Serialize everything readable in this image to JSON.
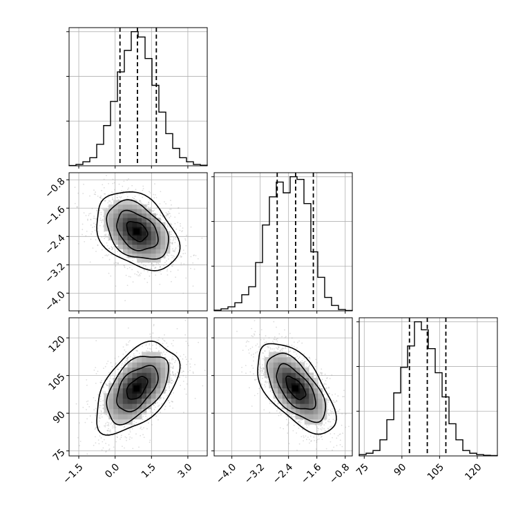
{
  "chart_data": {
    "type": "corner",
    "grid": true,
    "parameters": [
      {
        "ticks": [
          -1.5,
          0.0,
          1.5,
          3.0
        ],
        "tick_labels": [
          "−1.5",
          "0.0",
          "1.5",
          "3.0"
        ],
        "range": [
          -1.9,
          3.8
        ],
        "quantiles": [
          0.2,
          0.92,
          1.7
        ]
      },
      {
        "ticks": [
          -4.0,
          -3.2,
          -2.4,
          -1.6,
          -0.8
        ],
        "tick_labels": [
          "−4.0",
          "−3.2",
          "−2.4",
          "−1.6",
          "−0.8"
        ],
        "range": [
          -4.5,
          -0.6
        ],
        "quantiles": [
          -2.72,
          -2.2,
          -1.7
        ]
      },
      {
        "ticks": [
          75,
          90,
          105,
          120
        ],
        "tick_labels": [
          "75",
          "90",
          "105",
          "120"
        ],
        "range": [
          73,
          128
        ],
        "quantiles": [
          93.0,
          100.1,
          107.5
        ]
      }
    ],
    "histograms": [
      {
        "param": 0,
        "bin_start": -1.9,
        "bin_width": 0.285,
        "counts": [
          0.2,
          1,
          3,
          6,
          16,
          30,
          48,
          70,
          86,
          100,
          96,
          80,
          60,
          40,
          24,
          13,
          6,
          3,
          1,
          0.4
        ]
      },
      {
        "param": 1,
        "bin_start": -4.5,
        "bin_width": 0.195,
        "counts": [
          0.5,
          1.5,
          3,
          6,
          12,
          18,
          36,
          64,
          85,
          96,
          88,
          100,
          98,
          80,
          44,
          25,
          10,
          4,
          1,
          0.3
        ]
      },
      {
        "param": 2,
        "bin_start": 73,
        "bin_width": 2.75,
        "counts": [
          1,
          2,
          4,
          12,
          27,
          47,
          66,
          82,
          100,
          94,
          80,
          62,
          44,
          24,
          12,
          4,
          2,
          1,
          0.5,
          0.3
        ]
      }
    ],
    "pairs": [
      {
        "x_param": 0,
        "y_param": 1,
        "center": [
          0.9,
          -2.25
        ],
        "spread": [
          0.85,
          0.55
        ],
        "correlation": -0.35,
        "contour_levels": [
          0.5,
          1.0,
          1.5,
          2.0
        ]
      },
      {
        "x_param": 0,
        "y_param": 2,
        "center": [
          0.9,
          100.0
        ],
        "spread": [
          0.85,
          9.0
        ],
        "correlation": 0.5,
        "contour_levels": [
          0.5,
          1.0,
          1.5,
          2.0
        ]
      },
      {
        "x_param": 1,
        "y_param": 2,
        "center": [
          -2.2,
          100.0
        ],
        "spread": [
          0.55,
          9.0
        ],
        "correlation": -0.6,
        "contour_levels": [
          0.5,
          1.0,
          1.5,
          2.0
        ]
      }
    ]
  }
}
